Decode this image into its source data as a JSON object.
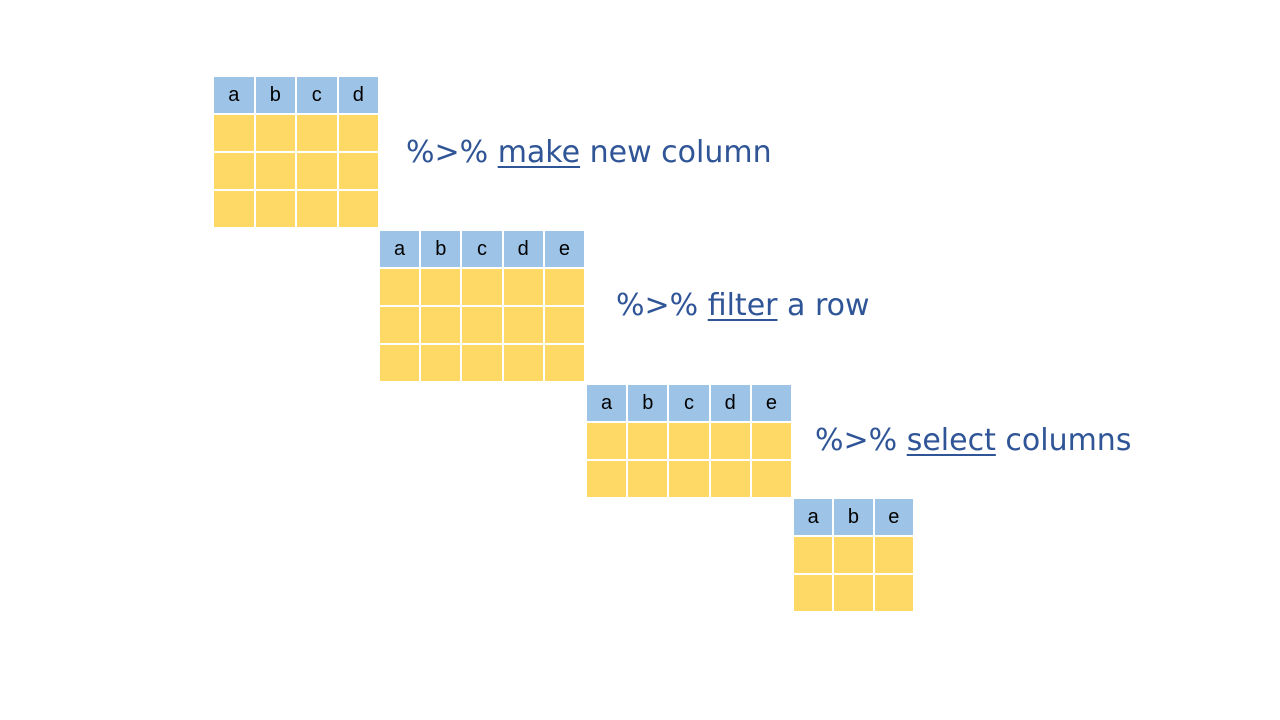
{
  "colors": {
    "header": "#9dc3e6",
    "body": "#ffd966",
    "label_text": "#2f5597",
    "grid_lines": "#ffffff"
  },
  "tables": [
    {
      "headers": [
        "a",
        "b",
        "c",
        "d"
      ],
      "body_rows": 3
    },
    {
      "headers": [
        "a",
        "b",
        "c",
        "d",
        "e"
      ],
      "body_rows": 3
    },
    {
      "headers": [
        "a",
        "b",
        "c",
        "d",
        "e"
      ],
      "body_rows": 2
    },
    {
      "headers": [
        "a",
        "b",
        "e"
      ],
      "body_rows": 2
    }
  ],
  "steps": [
    {
      "pipe": "%>%",
      "verb": "make",
      "rest": "new column"
    },
    {
      "pipe": "%>%",
      "verb": "filter",
      "rest": "a row"
    },
    {
      "pipe": "%>%",
      "verb": "select",
      "rest": "columns"
    }
  ]
}
